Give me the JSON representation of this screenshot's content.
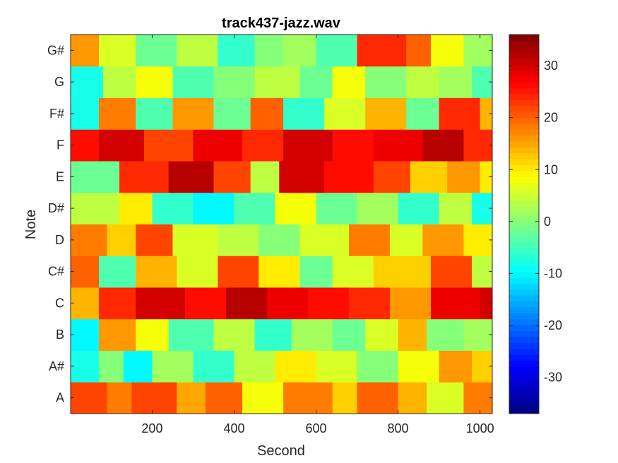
{
  "chart_data": {
    "type": "heatmap",
    "title": "track437-jazz.wav",
    "xlabel": "Second",
    "ylabel": "Note",
    "x_range": [
      1,
      1030
    ],
    "x_ticks": [
      200,
      400,
      600,
      800,
      1000
    ],
    "y_categories": [
      "A",
      "A#",
      "B",
      "C",
      "C#",
      "D",
      "D#",
      "E",
      "F",
      "F#",
      "G",
      "G#"
    ],
    "colorbar": {
      "min": -37,
      "max": 36,
      "ticks": [
        -30,
        -20,
        -10,
        0,
        10,
        20,
        30
      ],
      "colormap": "jet"
    },
    "rows": [
      {
        "note": "A",
        "segments": [
          [
            1,
            22
          ],
          [
            90,
            18
          ],
          [
            150,
            22
          ],
          [
            260,
            15
          ],
          [
            330,
            20
          ],
          [
            420,
            8
          ],
          [
            520,
            18
          ],
          [
            640,
            12
          ],
          [
            700,
            20
          ],
          [
            800,
            14
          ],
          [
            870,
            6
          ],
          [
            960,
            18
          ]
        ]
      },
      {
        "note": "A#",
        "segments": [
          [
            1,
            -8
          ],
          [
            70,
            0
          ],
          [
            130,
            -10
          ],
          [
            200,
            2
          ],
          [
            300,
            -6
          ],
          [
            400,
            4
          ],
          [
            500,
            10
          ],
          [
            600,
            6
          ],
          [
            700,
            0
          ],
          [
            800,
            8
          ],
          [
            900,
            16
          ],
          [
            980,
            12
          ]
        ]
      },
      {
        "note": "B",
        "segments": [
          [
            1,
            -10
          ],
          [
            70,
            16
          ],
          [
            160,
            8
          ],
          [
            240,
            -4
          ],
          [
            350,
            4
          ],
          [
            450,
            -6
          ],
          [
            540,
            2
          ],
          [
            640,
            -2
          ],
          [
            720,
            6
          ],
          [
            800,
            14
          ],
          [
            870,
            0
          ],
          [
            960,
            2
          ]
        ]
      },
      {
        "note": "C",
        "segments": [
          [
            1,
            14
          ],
          [
            70,
            24
          ],
          [
            160,
            30
          ],
          [
            280,
            26
          ],
          [
            380,
            32
          ],
          [
            480,
            28
          ],
          [
            580,
            26
          ],
          [
            680,
            24
          ],
          [
            780,
            16
          ],
          [
            880,
            28
          ],
          [
            1000,
            30
          ]
        ]
      },
      {
        "note": "C#",
        "segments": [
          [
            1,
            20
          ],
          [
            70,
            -4
          ],
          [
            160,
            14
          ],
          [
            260,
            6
          ],
          [
            360,
            22
          ],
          [
            460,
            10
          ],
          [
            560,
            -2
          ],
          [
            640,
            6
          ],
          [
            740,
            12
          ],
          [
            880,
            22
          ],
          [
            980,
            4
          ]
        ]
      },
      {
        "note": "D",
        "segments": [
          [
            1,
            18
          ],
          [
            90,
            12
          ],
          [
            160,
            22
          ],
          [
            250,
            6
          ],
          [
            360,
            4
          ],
          [
            460,
            0
          ],
          [
            560,
            6
          ],
          [
            680,
            18
          ],
          [
            780,
            6
          ],
          [
            860,
            16
          ],
          [
            960,
            10
          ]
        ]
      },
      {
        "note": "D#",
        "segments": [
          [
            1,
            4
          ],
          [
            120,
            10
          ],
          [
            200,
            -6
          ],
          [
            300,
            -10
          ],
          [
            400,
            -4
          ],
          [
            500,
            8
          ],
          [
            600,
            -2
          ],
          [
            700,
            2
          ],
          [
            800,
            -6
          ],
          [
            900,
            4
          ],
          [
            980,
            -8
          ]
        ]
      },
      {
        "note": "E",
        "segments": [
          [
            1,
            -2
          ],
          [
            120,
            24
          ],
          [
            240,
            32
          ],
          [
            350,
            22
          ],
          [
            440,
            4
          ],
          [
            510,
            30
          ],
          [
            620,
            26
          ],
          [
            740,
            22
          ],
          [
            830,
            12
          ],
          [
            920,
            16
          ],
          [
            1000,
            10
          ]
        ]
      },
      {
        "note": "F",
        "segments": [
          [
            1,
            26
          ],
          [
            70,
            30
          ],
          [
            180,
            22
          ],
          [
            300,
            28
          ],
          [
            420,
            24
          ],
          [
            520,
            30
          ],
          [
            640,
            26
          ],
          [
            740,
            28
          ],
          [
            860,
            32
          ],
          [
            960,
            24
          ]
        ]
      },
      {
        "note": "F#",
        "segments": [
          [
            1,
            -8
          ],
          [
            70,
            18
          ],
          [
            160,
            -4
          ],
          [
            250,
            16
          ],
          [
            350,
            -2
          ],
          [
            440,
            20
          ],
          [
            520,
            -6
          ],
          [
            620,
            6
          ],
          [
            720,
            14
          ],
          [
            820,
            -2
          ],
          [
            900,
            24
          ],
          [
            1000,
            14
          ]
        ]
      },
      {
        "note": "G",
        "segments": [
          [
            1,
            -8
          ],
          [
            80,
            4
          ],
          [
            160,
            8
          ],
          [
            250,
            -4
          ],
          [
            350,
            0
          ],
          [
            450,
            4
          ],
          [
            560,
            -2
          ],
          [
            640,
            8
          ],
          [
            720,
            0
          ],
          [
            820,
            4
          ],
          [
            900,
            2
          ],
          [
            980,
            -4
          ]
        ]
      },
      {
        "note": "G#",
        "segments": [
          [
            1,
            16
          ],
          [
            70,
            6
          ],
          [
            160,
            -2
          ],
          [
            260,
            4
          ],
          [
            360,
            -6
          ],
          [
            450,
            0
          ],
          [
            520,
            2
          ],
          [
            600,
            -4
          ],
          [
            700,
            24
          ],
          [
            820,
            20
          ],
          [
            880,
            8
          ],
          [
            960,
            2
          ]
        ]
      }
    ]
  }
}
